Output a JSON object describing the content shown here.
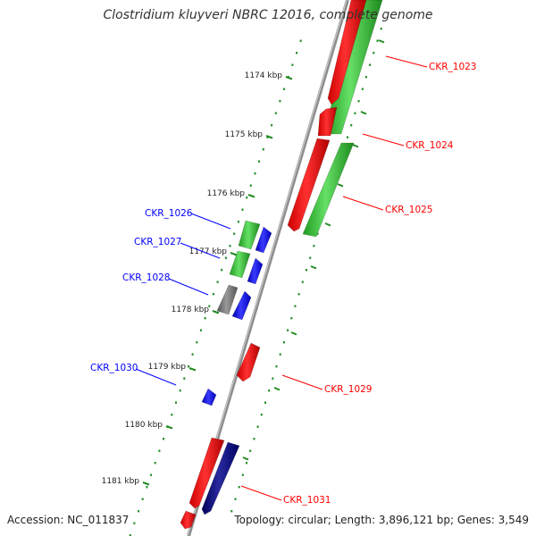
{
  "title": "Clostridium kluyveri NBRC 12016, complete genome",
  "accession": "Accession: NC_011837",
  "summary": "Topology: circular; Length: 3,896,121 bp; Genes: 3,549",
  "colors": {
    "forward_gene": "#ff0000",
    "reverse_gene": "#0000ff",
    "cds_green": "#33cc33",
    "rna_gray": "#777777",
    "dark_navy": "#000080",
    "tick_green": "#228b22",
    "backbone": "#8c8c8c"
  },
  "scale_ticks": [
    "1174 kbp",
    "1175 kbp",
    "1176 kbp",
    "1177 kbp",
    "1178 kbp",
    "1179 kbp",
    "1180 kbp",
    "1181 kbp"
  ],
  "labels": [
    {
      "text": "CKR_1023",
      "side": "right"
    },
    {
      "text": "CKR_1024",
      "side": "right"
    },
    {
      "text": "CKR_1025",
      "side": "right"
    },
    {
      "text": "CKR_1026",
      "side": "left"
    },
    {
      "text": "CKR_1027",
      "side": "left"
    },
    {
      "text": "CKR_1028",
      "side": "left"
    },
    {
      "text": "CKR_1029",
      "side": "right"
    },
    {
      "text": "CKR_1030",
      "side": "left"
    },
    {
      "text": "CKR_1031",
      "side": "right"
    }
  ]
}
